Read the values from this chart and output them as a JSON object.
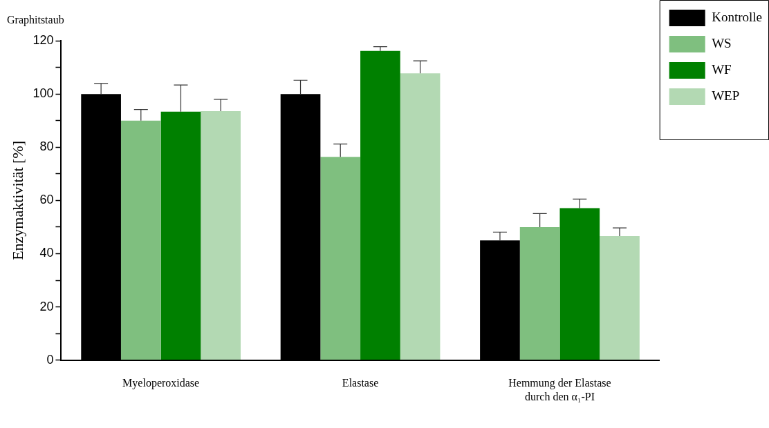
{
  "chart_data": {
    "type": "bar",
    "title": "Graphitstaub",
    "ylabel": "Enzymaktivität [%]",
    "categories": [
      "Myeloperoxidase",
      "Elastase",
      "Hemmung der Elastase\ndurch den α₁-PI"
    ],
    "series": [
      {
        "name": "Kontrolle",
        "color": "#000000",
        "values": [
          100,
          100,
          45
        ],
        "errors": [
          [
            100,
            104
          ],
          [
            100,
            105.2
          ],
          [
            45,
            48.1
          ]
        ]
      },
      {
        "name": "WS",
        "color": "#7fbf7f",
        "values": [
          90,
          76.4,
          50
        ],
        "errors": [
          [
            90,
            94.2
          ],
          [
            76.4,
            81.2
          ],
          [
            50,
            55.1
          ]
        ]
      },
      {
        "name": "WF",
        "color": "#008000",
        "values": [
          93.4,
          116.2,
          57.1
        ],
        "errors": [
          [
            93.4,
            103.4
          ],
          [
            116.2,
            117.8
          ],
          [
            57.1,
            60.5
          ]
        ]
      },
      {
        "name": "WEP",
        "color": "#b3d9b3",
        "values": [
          93.6,
          107.8,
          46.6
        ],
        "errors": [
          [
            93.6,
            98
          ],
          [
            107.8,
            112.5
          ],
          [
            46.6,
            49.7
          ]
        ]
      }
    ],
    "ylim": [
      0,
      120
    ],
    "yticks": [
      0,
      {
        "value": 10,
        "label": null
      },
      20,
      {
        "value": 30,
        "label": null
      },
      40,
      {
        "value": 50,
        "label": null
      },
      60,
      {
        "value": 70,
        "label": null
      },
      80,
      {
        "value": 90,
        "label": null
      },
      100,
      {
        "value": 110,
        "label": null
      },
      120
    ],
    "grid": false,
    "legend": "right"
  }
}
